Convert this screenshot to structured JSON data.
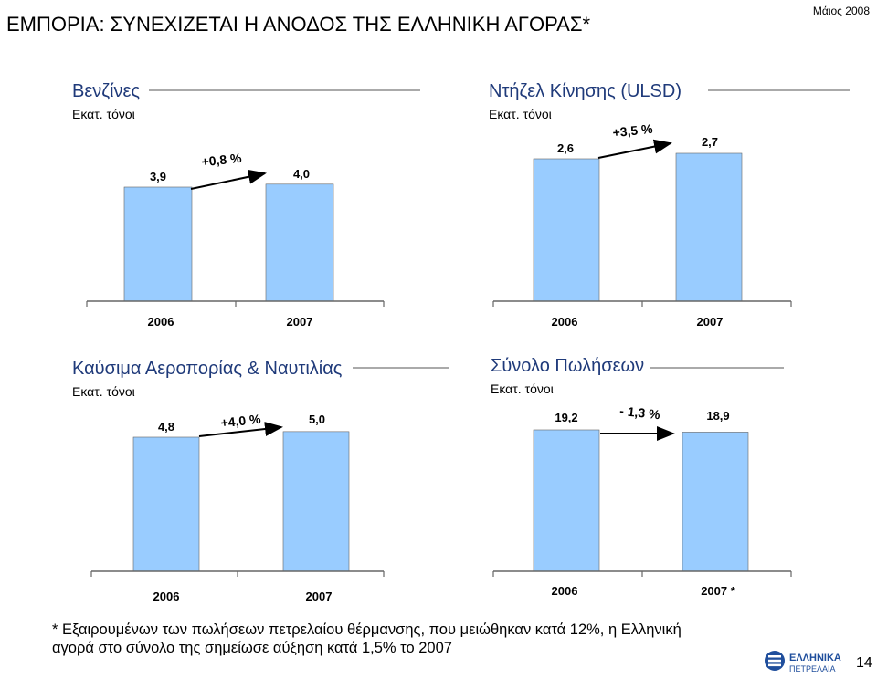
{
  "header": {
    "title": "ΕΜΠΟΡΙΑ: ΣΥΝΕΧΙΖΕΤΑΙ Η ΑΝΟΔΟΣ ΤΗΣ ΕΛΛΗΝΙΚΗ ΑΓΟΡΑΣ*",
    "date": "Μάιος 2008"
  },
  "colors": {
    "bar_fill": "#99ccff",
    "bar_stroke": "#666666",
    "arrow": "#000000"
  },
  "chart_data": [
    {
      "type": "bar",
      "title": "Βενζίνες",
      "ylabel": "Εκατ. τόνοι",
      "categories": [
        "2006",
        "2007"
      ],
      "values": [
        3.9,
        4.0
      ],
      "value_labels": [
        "3,9",
        "4,0"
      ],
      "change_label": "+0,8 %"
    },
    {
      "type": "bar",
      "title": "Ντήζελ Κίνησης (ULSD)",
      "ylabel": "Εκατ. τόνοι",
      "categories": [
        "2006",
        "2007"
      ],
      "values": [
        2.6,
        2.7
      ],
      "value_labels": [
        "2,6",
        "2,7"
      ],
      "change_label": "+3,5 %"
    },
    {
      "type": "bar",
      "title": "Καύσιμα Αεροπορίας & Ναυτιλίας",
      "ylabel": "Εκατ. τόνοι",
      "categories": [
        "2006",
        "2007"
      ],
      "values": [
        4.8,
        5.0
      ],
      "value_labels": [
        "4,8",
        "5,0"
      ],
      "change_label": "+4,0 %"
    },
    {
      "type": "bar",
      "title": "Σύνολο Πωλήσεων",
      "ylabel": "Εκατ. τόνοι",
      "categories": [
        "2006",
        "2007 *"
      ],
      "values": [
        19.2,
        18.9
      ],
      "value_labels": [
        "19,2",
        "18,9"
      ],
      "change_label": "- 1,3 %"
    }
  ],
  "footnote": {
    "line1": "* Εξαιρουμένων των πωλήσεων πετρελαίου θέρμανσης, που μειώθηκαν κατά 12%, η Ελληνική",
    "line2": "αγορά στο σύνολο της σημείωσε αύξηση κατά 1,5% το 2007"
  },
  "logo": {
    "line1": "ΕΛΛΗΝΙΚΑ",
    "line2": "ΠΕΤΡΕΛΑΙΑ"
  },
  "page_number": "14"
}
